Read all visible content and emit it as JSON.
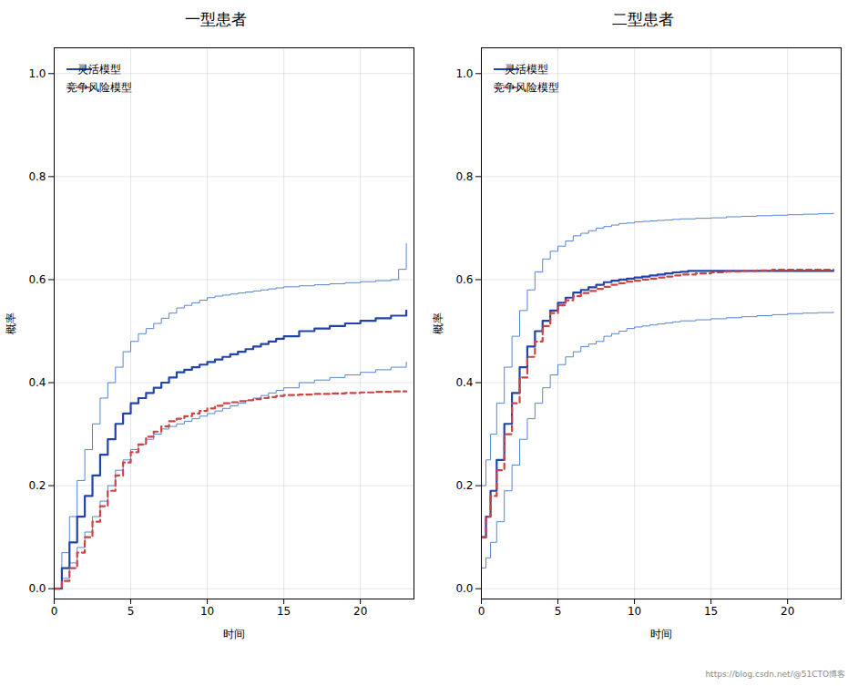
{
  "chart_data": [
    {
      "type": "step",
      "title": "一型患者",
      "xlabel": "时间",
      "ylabel": "概率",
      "xlim": [
        0,
        23.5
      ],
      "ylim": [
        -0.02,
        1.05
      ],
      "xticks": [
        0,
        5,
        10,
        15,
        20
      ],
      "yticks": [
        {
          "value": 0,
          "label": "0.0"
        },
        0.2,
        0.4,
        0.6,
        0.8,
        {
          "value": 1,
          "label": "1.0"
        }
      ],
      "grid": true,
      "legend": "upper left",
      "series": [
        {
          "color": "#4477cc",
          "line_style": "solid",
          "x": [
            0,
            0.5,
            1.0,
            1.5,
            2.0,
            2.5,
            3.0,
            3.5,
            4.0,
            4.5,
            5.0,
            5.5,
            6.0,
            6.5,
            7.0,
            7.5,
            8.0,
            8.5,
            9.0,
            9.5,
            10.0,
            10.5,
            11.0,
            11.5,
            12.0,
            12.5,
            13.0,
            13.5,
            14.0,
            14.5,
            15.0,
            16.0,
            17.0,
            18.0,
            19.0,
            20.0,
            21.0,
            22.0,
            22.5,
            23.0
          ],
          "values": [
            0.0,
            0.07,
            0.14,
            0.21,
            0.27,
            0.32,
            0.37,
            0.4,
            0.43,
            0.46,
            0.48,
            0.495,
            0.505,
            0.515,
            0.525,
            0.535,
            0.545,
            0.55,
            0.555,
            0.56,
            0.565,
            0.568,
            0.57,
            0.572,
            0.574,
            0.576,
            0.578,
            0.58,
            0.582,
            0.584,
            0.586,
            0.588,
            0.59,
            0.592,
            0.594,
            0.596,
            0.598,
            0.6,
            0.62,
            0.67
          ]
        },
        {
          "color": "#4477cc",
          "line_style": "solid",
          "x": [
            0,
            0.5,
            1.0,
            1.5,
            2.0,
            2.5,
            3.0,
            3.5,
            4.0,
            4.5,
            5.0,
            5.5,
            6.0,
            6.5,
            7.0,
            7.5,
            8.0,
            8.5,
            9.0,
            9.5,
            10.0,
            10.5,
            11.0,
            11.5,
            12.0,
            12.5,
            13.0,
            13.5,
            14.0,
            14.5,
            15.0,
            16.0,
            17.0,
            18.0,
            19.0,
            20.0,
            21.0,
            22.0,
            23.0
          ],
          "values": [
            0.0,
            0.02,
            0.05,
            0.08,
            0.11,
            0.14,
            0.17,
            0.2,
            0.23,
            0.25,
            0.27,
            0.28,
            0.29,
            0.3,
            0.31,
            0.315,
            0.32,
            0.325,
            0.33,
            0.335,
            0.34,
            0.345,
            0.35,
            0.355,
            0.36,
            0.365,
            0.37,
            0.375,
            0.38,
            0.385,
            0.39,
            0.4,
            0.405,
            0.41,
            0.415,
            0.42,
            0.425,
            0.43,
            0.44
          ]
        },
        {
          "name": "灵活模型",
          "color": "#2244aa",
          "line_style": "solid",
          "x": [
            0,
            0.5,
            1.0,
            1.5,
            2.0,
            2.5,
            3.0,
            3.5,
            4.0,
            4.5,
            5.0,
            5.5,
            6.0,
            6.5,
            7.0,
            7.5,
            8.0,
            8.5,
            9.0,
            9.5,
            10.0,
            10.5,
            11.0,
            11.5,
            12.0,
            12.5,
            13.0,
            13.5,
            14.0,
            14.5,
            15.0,
            16.0,
            17.0,
            18.0,
            19.0,
            20.0,
            21.0,
            22.0,
            23.0
          ],
          "values": [
            0.0,
            0.04,
            0.09,
            0.14,
            0.18,
            0.22,
            0.26,
            0.29,
            0.32,
            0.34,
            0.36,
            0.37,
            0.38,
            0.39,
            0.4,
            0.41,
            0.42,
            0.425,
            0.43,
            0.435,
            0.44,
            0.445,
            0.45,
            0.455,
            0.46,
            0.465,
            0.47,
            0.475,
            0.48,
            0.485,
            0.49,
            0.5,
            0.505,
            0.51,
            0.515,
            0.52,
            0.525,
            0.53,
            0.54
          ]
        },
        {
          "name": "竞争风险模型",
          "color": "#cc4444",
          "line_style": "dashed",
          "x": [
            0,
            0.5,
            1.0,
            1.5,
            2.0,
            2.5,
            3.0,
            3.5,
            4.0,
            4.5,
            5.0,
            5.5,
            6.0,
            6.5,
            7.0,
            7.5,
            8.0,
            8.5,
            9.0,
            9.5,
            10.0,
            10.5,
            11.0,
            11.5,
            12.0,
            12.5,
            13.0,
            13.5,
            14.0,
            14.5,
            15.0,
            16.0,
            17.0,
            18.0,
            19.0,
            20.0,
            21.0,
            22.0,
            23.0
          ],
          "values": [
            0.0,
            0.015,
            0.04,
            0.07,
            0.1,
            0.13,
            0.16,
            0.19,
            0.22,
            0.245,
            0.265,
            0.28,
            0.295,
            0.305,
            0.315,
            0.325,
            0.33,
            0.335,
            0.34,
            0.345,
            0.35,
            0.355,
            0.36,
            0.362,
            0.364,
            0.366,
            0.368,
            0.37,
            0.372,
            0.374,
            0.376,
            0.377,
            0.378,
            0.379,
            0.38,
            0.381,
            0.382,
            0.383,
            0.383
          ]
        }
      ]
    },
    {
      "type": "step",
      "title": "二型患者",
      "xlabel": "时间",
      "ylabel": "概率",
      "xlim": [
        0,
        23.5
      ],
      "ylim": [
        -0.02,
        1.05
      ],
      "xticks": [
        0,
        5,
        10,
        15,
        20
      ],
      "yticks": [
        {
          "value": 0,
          "label": "0.0"
        },
        0.2,
        0.4,
        0.6,
        0.8,
        {
          "value": 1,
          "label": "1.0"
        }
      ],
      "grid": true,
      "legend": "upper left",
      "annotations": [
        "https://blog.csdn.net/@51CTO博客"
      ],
      "series": [
        {
          "color": "#4477cc",
          "line_style": "solid",
          "x": [
            0,
            0.3,
            0.6,
            1.0,
            1.5,
            2.0,
            2.5,
            3.0,
            3.5,
            4.0,
            4.5,
            5.0,
            5.5,
            6.0,
            6.5,
            7.0,
            7.5,
            8.0,
            8.5,
            9.0,
            9.5,
            10.0,
            10.5,
            11.0,
            11.5,
            12.0,
            12.5,
            13.0,
            14.0,
            15.0,
            16.0,
            17.0,
            18.0,
            19.0,
            20.0,
            21.0,
            22.0,
            23.0
          ],
          "values": [
            0.2,
            0.25,
            0.3,
            0.36,
            0.43,
            0.49,
            0.54,
            0.58,
            0.615,
            0.64,
            0.655,
            0.665,
            0.675,
            0.685,
            0.69,
            0.695,
            0.7,
            0.703,
            0.706,
            0.709,
            0.71,
            0.712,
            0.713,
            0.714,
            0.715,
            0.716,
            0.717,
            0.718,
            0.719,
            0.72,
            0.722,
            0.723,
            0.724,
            0.725,
            0.726,
            0.727,
            0.728,
            0.729
          ]
        },
        {
          "color": "#4477cc",
          "line_style": "solid",
          "x": [
            0,
            0.3,
            0.6,
            1.0,
            1.5,
            2.0,
            2.5,
            3.0,
            3.5,
            4.0,
            4.5,
            5.0,
            5.5,
            6.0,
            6.5,
            7.0,
            7.5,
            8.0,
            8.5,
            9.0,
            9.5,
            10.0,
            10.5,
            11.0,
            11.5,
            12.0,
            12.5,
            13.0,
            14.0,
            15.0,
            16.0,
            17.0,
            18.0,
            19.0,
            20.0,
            21.0,
            22.0,
            23.0
          ],
          "values": [
            0.04,
            0.06,
            0.09,
            0.13,
            0.19,
            0.24,
            0.29,
            0.33,
            0.36,
            0.39,
            0.415,
            0.435,
            0.45,
            0.46,
            0.47,
            0.475,
            0.48,
            0.49,
            0.495,
            0.5,
            0.505,
            0.508,
            0.51,
            0.512,
            0.514,
            0.516,
            0.518,
            0.52,
            0.522,
            0.524,
            0.526,
            0.528,
            0.53,
            0.532,
            0.534,
            0.535,
            0.536,
            0.537
          ]
        },
        {
          "name": "灵活模型",
          "color": "#2244aa",
          "line_style": "solid",
          "x": [
            0,
            0.3,
            0.6,
            1.0,
            1.5,
            2.0,
            2.5,
            3.0,
            3.5,
            4.0,
            4.5,
            5.0,
            5.5,
            6.0,
            6.5,
            7.0,
            7.5,
            8.0,
            8.5,
            9.0,
            9.5,
            10.0,
            10.5,
            11.0,
            11.5,
            12.0,
            12.5,
            13.0,
            13.5,
            14.0,
            15.0,
            16.0,
            17.0,
            18.0,
            19.0,
            20.0,
            21.0,
            22.0,
            23.0
          ],
          "values": [
            0.1,
            0.14,
            0.19,
            0.25,
            0.32,
            0.38,
            0.43,
            0.47,
            0.5,
            0.52,
            0.54,
            0.555,
            0.565,
            0.575,
            0.58,
            0.585,
            0.59,
            0.595,
            0.598,
            0.6,
            0.602,
            0.604,
            0.606,
            0.608,
            0.61,
            0.612,
            0.614,
            0.615,
            0.617,
            0.617,
            0.617,
            0.617,
            0.617,
            0.617,
            0.617,
            0.617,
            0.617,
            0.617,
            0.617
          ]
        },
        {
          "name": "竞争风险模型",
          "color": "#cc4444",
          "line_style": "dashed",
          "x": [
            0,
            0.3,
            0.6,
            1.0,
            1.5,
            2.0,
            2.5,
            3.0,
            3.5,
            4.0,
            4.5,
            5.0,
            5.5,
            6.0,
            6.5,
            7.0,
            7.5,
            8.0,
            8.5,
            9.0,
            9.5,
            10.0,
            10.5,
            11.0,
            11.5,
            12.0,
            12.5,
            13.0,
            14.0,
            15.0,
            16.0,
            17.0,
            18.0,
            19.0,
            20.0,
            21.0,
            22.0,
            23.0
          ],
          "values": [
            0.1,
            0.14,
            0.18,
            0.23,
            0.3,
            0.36,
            0.41,
            0.45,
            0.48,
            0.51,
            0.535,
            0.55,
            0.56,
            0.568,
            0.574,
            0.578,
            0.582,
            0.586,
            0.59,
            0.593,
            0.596,
            0.598,
            0.6,
            0.602,
            0.604,
            0.606,
            0.608,
            0.61,
            0.612,
            0.614,
            0.616,
            0.617,
            0.618,
            0.619,
            0.619,
            0.619,
            0.619,
            0.619
          ]
        }
      ]
    }
  ]
}
